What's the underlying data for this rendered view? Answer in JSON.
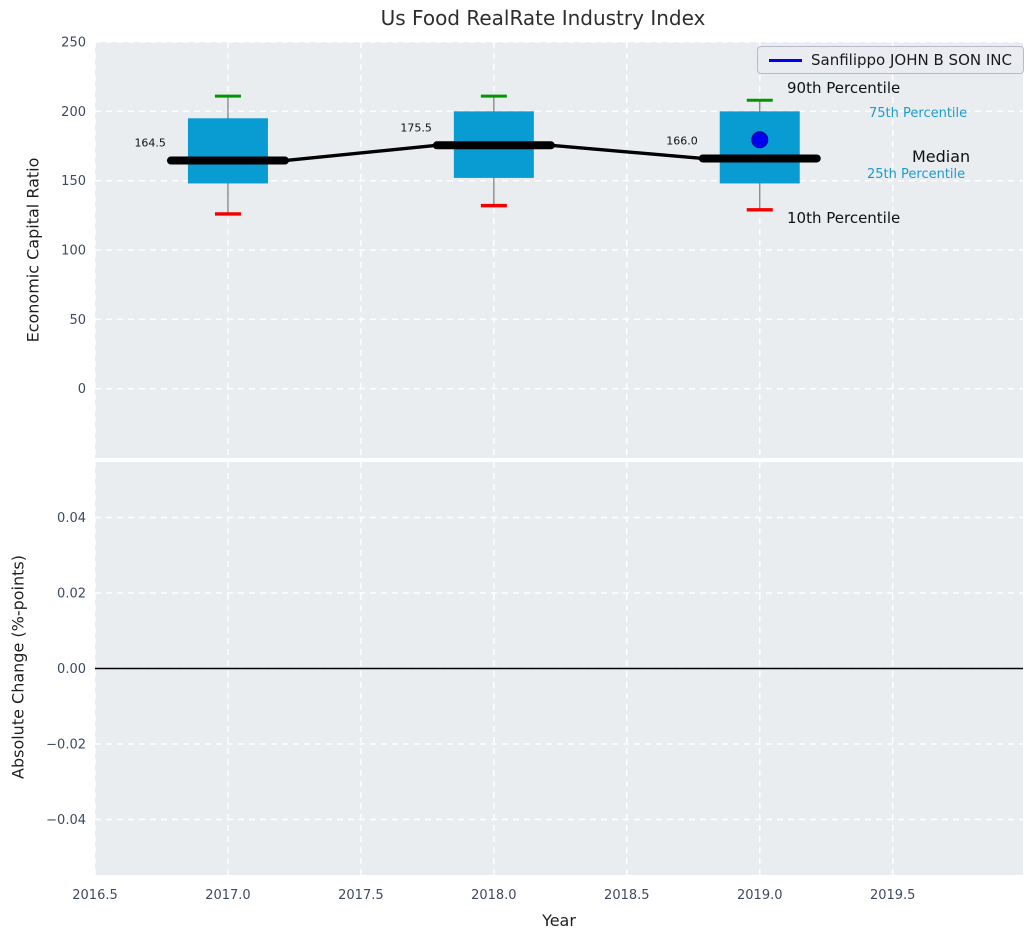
{
  "chart": {
    "title": "Us Food RealRate Industry Index",
    "legend": {
      "label": "Sanfilippo JOHN B SON INC",
      "line_color": "#0000ee"
    },
    "annotations": {
      "p90": "90th Percentile",
      "p75": "75th Percentile",
      "median": "Median",
      "p25": "25th Percentile",
      "p10": "10th Percentile"
    },
    "colors": {
      "panel_bg": "#e9edef",
      "grid": "#ffffff",
      "box_fill": "#089cd3",
      "median": "#000000",
      "whisker": "#7a7a7a",
      "cap_top": "#009600",
      "cap_bottom": "#f20000",
      "company": "#0000ee",
      "tick_text": "#3d4a63",
      "zero_line": "#000000"
    }
  },
  "chart_data": [
    {
      "type": "boxplot+line",
      "title": "Us Food RealRate Industry Index",
      "ylabel": "Economic Capital Ratio",
      "yticks": [
        0,
        50,
        100,
        150,
        200,
        250
      ],
      "ytick_labels": [
        "0",
        "50",
        "100",
        "150",
        "200",
        "250"
      ],
      "ylim": [
        -50,
        250
      ],
      "grid": true,
      "legend_position": "upper right",
      "boxes": [
        {
          "year": 2017,
          "p10": 126,
          "p25": 148,
          "median": 164.5,
          "p75": 195,
          "p90": 211,
          "label": "164.5"
        },
        {
          "year": 2018,
          "p10": 132,
          "p25": 152,
          "median": 175.5,
          "p75": 200,
          "p90": 211,
          "label": "175.5"
        },
        {
          "year": 2019,
          "p10": 129,
          "p25": 148,
          "median": 166.0,
          "p75": 200,
          "p90": 208,
          "label": "166.0"
        }
      ],
      "median_line": [
        [
          2017,
          164.5
        ],
        [
          2018,
          175.5
        ],
        [
          2019,
          166.0
        ]
      ],
      "company_series": {
        "name": "Sanfilippo JOHN B SON INC",
        "points": [
          {
            "year": 2019,
            "value": 179.5
          }
        ]
      }
    },
    {
      "type": "line",
      "ylabel": "Absolute Change (%-points)",
      "xlabel": "Year",
      "yticks": [
        0.04,
        0.02,
        0.0,
        -0.02,
        -0.04
      ],
      "ytick_labels": [
        "0.04",
        "0.02",
        "0.00",
        "−0.02",
        "−0.04"
      ],
      "ylim": [
        -0.0547,
        0.0547
      ],
      "zero_line": 0.0,
      "grid": true,
      "xticks": [
        2016.5,
        2017.0,
        2017.5,
        2018.0,
        2018.5,
        2019.0,
        2019.5
      ],
      "xtick_labels": [
        "2016.5",
        "2017.0",
        "2017.5",
        "2018.0",
        "2018.5",
        "2019.0",
        "2019.5"
      ],
      "xlim": [
        2016.5,
        2019.99
      ]
    }
  ]
}
